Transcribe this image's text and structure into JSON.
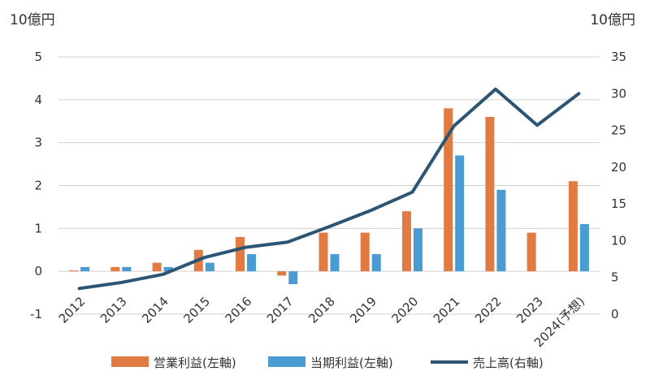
{
  "chart_data": {
    "type": "bar",
    "categories": [
      "2012",
      "2013",
      "2014",
      "2015",
      "2016",
      "2017",
      "2018",
      "2019",
      "2020",
      "2021",
      "2022",
      "2023",
      "2024(予想)"
    ],
    "left_axis": {
      "unit": "10億円",
      "ylim": [
        -1,
        5
      ],
      "ticks": [
        "-1",
        "0",
        "1",
        "2",
        "3",
        "4",
        "5"
      ]
    },
    "right_axis": {
      "unit": "10億円",
      "ylim": [
        0,
        35
      ],
      "ticks": [
        "0",
        "5",
        "10",
        "15",
        "20",
        "25",
        "30",
        "35"
      ]
    },
    "series": [
      {
        "name": "営業利益(左軸)",
        "kind": "bar",
        "axis": "left",
        "color": "#E07B43",
        "values": [
          0.02,
          0.1,
          0.2,
          0.5,
          0.8,
          -0.1,
          0.9,
          0.9,
          1.4,
          3.8,
          3.6,
          0.9,
          2.1
        ]
      },
      {
        "name": "当期利益(左軸)",
        "kind": "bar",
        "axis": "left",
        "color": "#4A9BD1",
        "values": [
          0.1,
          0.1,
          0.1,
          0.2,
          0.4,
          -0.3,
          0.4,
          0.4,
          1.0,
          2.7,
          1.9,
          null,
          1.1
        ]
      },
      {
        "name": "売上高(右軸)",
        "kind": "line",
        "axis": "right",
        "color": "#2B5573",
        "values": [
          3.5,
          4.3,
          5.4,
          7.7,
          9.1,
          9.8,
          11.9,
          14.1,
          16.6,
          25.6,
          30.6,
          25.7,
          30.0
        ]
      }
    ],
    "grid": true,
    "legend_position": "bottom"
  }
}
